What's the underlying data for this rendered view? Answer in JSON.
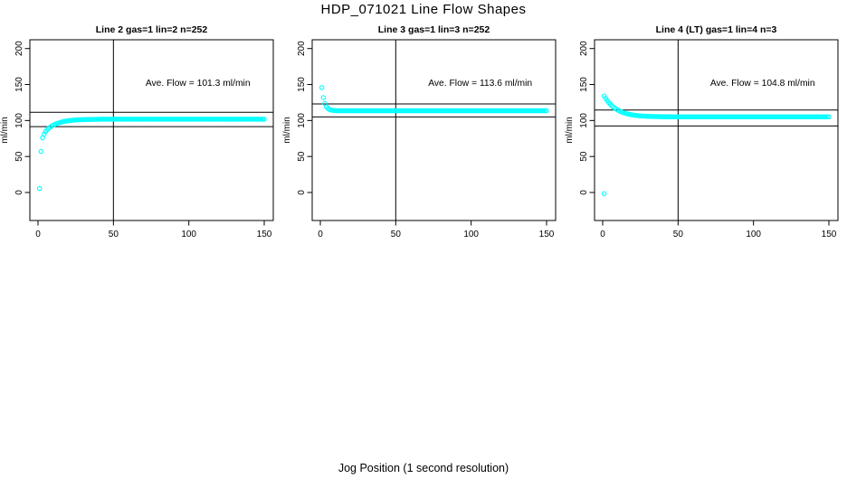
{
  "figure": {
    "title": "HDP_071021  Line Flow Shapes",
    "x_axis_label": "Jog Position (1 second resolution)",
    "background_color": "#ffffff",
    "point_color": "#00ffff",
    "axis_color": "#000000"
  },
  "chart_data": [
    {
      "type": "scatter",
      "title": "Line 2 gas=1 lin=2 n=252",
      "line": "Line 2",
      "gas": 1,
      "lin": 2,
      "n": 252,
      "annotation": "Ave. Flow =  101.3  ml/min",
      "ave_flow": 101.3,
      "ylabel": "ml/min",
      "x_ticks": [
        0,
        50,
        100,
        150
      ],
      "y_ticks": [
        0,
        50,
        100,
        150,
        200
      ],
      "xlim": [
        0,
        150
      ],
      "ylim": [
        0,
        200
      ],
      "grid": false,
      "ref_vline_x": 50,
      "ref_hlines": [
        111.4,
        91.5
      ],
      "annotation_pos": {
        "x": 106,
        "y": 152
      },
      "series": {
        "marker": "open-circle",
        "points": [
          [
            1,
            5.5
          ],
          [
            2,
            57
          ],
          [
            3,
            76
          ],
          [
            4,
            81
          ],
          [
            5,
            84.5
          ],
          [
            6,
            87
          ],
          [
            7,
            89
          ],
          [
            8,
            90.7
          ],
          [
            9,
            92.2
          ],
          [
            10,
            93.4
          ],
          [
            11,
            94.5
          ],
          [
            12,
            95.4
          ],
          [
            13,
            96.2
          ],
          [
            14,
            96.9
          ],
          [
            15,
            97.5
          ],
          [
            16,
            98.1
          ],
          [
            17,
            98.6
          ],
          [
            18,
            99
          ],
          [
            19,
            99.4
          ],
          [
            20,
            99.7
          ],
          [
            21,
            100
          ],
          [
            22,
            100.2
          ],
          [
            23,
            100.4
          ],
          [
            24,
            100.6
          ],
          [
            25,
            100.8
          ],
          [
            26,
            100.9
          ],
          [
            27,
            101
          ],
          [
            28,
            101.1
          ],
          [
            29,
            101.2
          ],
          [
            30,
            101.3
          ],
          [
            31,
            101.35
          ],
          [
            32,
            101.4
          ],
          [
            33,
            101.45
          ],
          [
            34,
            101.5
          ],
          [
            35,
            101.55
          ],
          [
            36,
            101.6
          ],
          [
            37,
            101.6
          ],
          [
            38,
            101.65
          ],
          [
            39,
            101.7
          ],
          [
            40,
            101.7
          ]
        ],
        "plateau": {
          "from": 41,
          "to": 150,
          "step": 1,
          "y": 101.8
        },
        "outliers": []
      }
    },
    {
      "type": "scatter",
      "title": "Line 3 gas=1 lin=3 n=252",
      "line": "Line 3",
      "gas": 1,
      "lin": 3,
      "n": 252,
      "annotation": "Ave. Flow =  113.6  ml/min",
      "ave_flow": 113.6,
      "ylabel": "ml/min",
      "x_ticks": [
        0,
        50,
        100,
        150
      ],
      "y_ticks": [
        0,
        50,
        100,
        150,
        200
      ],
      "xlim": [
        0,
        150
      ],
      "ylim": [
        0,
        200
      ],
      "grid": false,
      "ref_vline_x": 50,
      "ref_hlines": [
        123.0,
        105.0
      ],
      "annotation_pos": {
        "x": 106,
        "y": 152
      },
      "series": {
        "marker": "open-circle",
        "points": [
          [
            1,
            145.8
          ],
          [
            2,
            131.9
          ],
          [
            3,
            123.8
          ],
          [
            4,
            119.1
          ],
          [
            5,
            116.7
          ],
          [
            6,
            115.3
          ],
          [
            7,
            114.6
          ],
          [
            8,
            114.2
          ],
          [
            9,
            113.9
          ],
          [
            10,
            113.8
          ],
          [
            11,
            113.7
          ],
          [
            12,
            113.6
          ]
        ],
        "plateau": {
          "from": 13,
          "to": 150,
          "step": 1,
          "y": 113.6
        },
        "outliers": []
      }
    },
    {
      "type": "scatter",
      "title": "Line 4 (LT) gas=1 lin=4 n=3",
      "line": "Line 4 (LT)",
      "gas": 1,
      "lin": 4,
      "n": 3,
      "annotation": "Ave. Flow =  104.8  ml/min",
      "ave_flow": 104.8,
      "ylabel": "ml/min",
      "x_ticks": [
        0,
        50,
        100,
        150
      ],
      "y_ticks": [
        0,
        50,
        100,
        150,
        200
      ],
      "xlim": [
        0,
        150
      ],
      "ylim": [
        0,
        200
      ],
      "grid": false,
      "ref_vline_x": 50,
      "ref_hlines": [
        114.6,
        92.5
      ],
      "annotation_pos": {
        "x": 106,
        "y": 152
      },
      "series": {
        "marker": "open-circle",
        "points": [
          [
            1,
            134.1
          ],
          [
            2,
            130.7
          ],
          [
            3,
            127.7
          ],
          [
            4,
            125
          ],
          [
            5,
            122.7
          ],
          [
            6,
            120.6
          ],
          [
            7,
            118.8
          ],
          [
            8,
            117.1
          ],
          [
            9,
            115.7
          ],
          [
            10,
            114.5
          ],
          [
            11,
            113.3
          ],
          [
            12,
            112.4
          ],
          [
            13,
            111.5
          ],
          [
            14,
            110.7
          ],
          [
            15,
            110.1
          ],
          [
            16,
            109.5
          ],
          [
            17,
            108.9
          ],
          [
            18,
            108.5
          ],
          [
            19,
            108.1
          ],
          [
            20,
            107.7
          ],
          [
            21,
            107.4
          ],
          [
            22,
            107.1
          ],
          [
            23,
            106.9
          ],
          [
            24,
            106.6
          ],
          [
            25,
            106.4
          ],
          [
            26,
            106.3
          ],
          [
            27,
            106.1
          ],
          [
            28,
            106
          ],
          [
            29,
            105.9
          ],
          [
            30,
            105.8
          ],
          [
            31,
            105.7
          ],
          [
            32,
            105.6
          ],
          [
            33,
            105.6
          ],
          [
            34,
            105.5
          ],
          [
            35,
            105.5
          ],
          [
            36,
            105.4
          ],
          [
            37,
            105.4
          ],
          [
            38,
            105.3
          ],
          [
            39,
            105.3
          ],
          [
            40,
            105.3
          ]
        ],
        "plateau": {
          "from": 41,
          "to": 150,
          "step": 1,
          "y": 105.1
        },
        "outliers": [
          [
            1,
            -1.5
          ]
        ]
      }
    }
  ]
}
